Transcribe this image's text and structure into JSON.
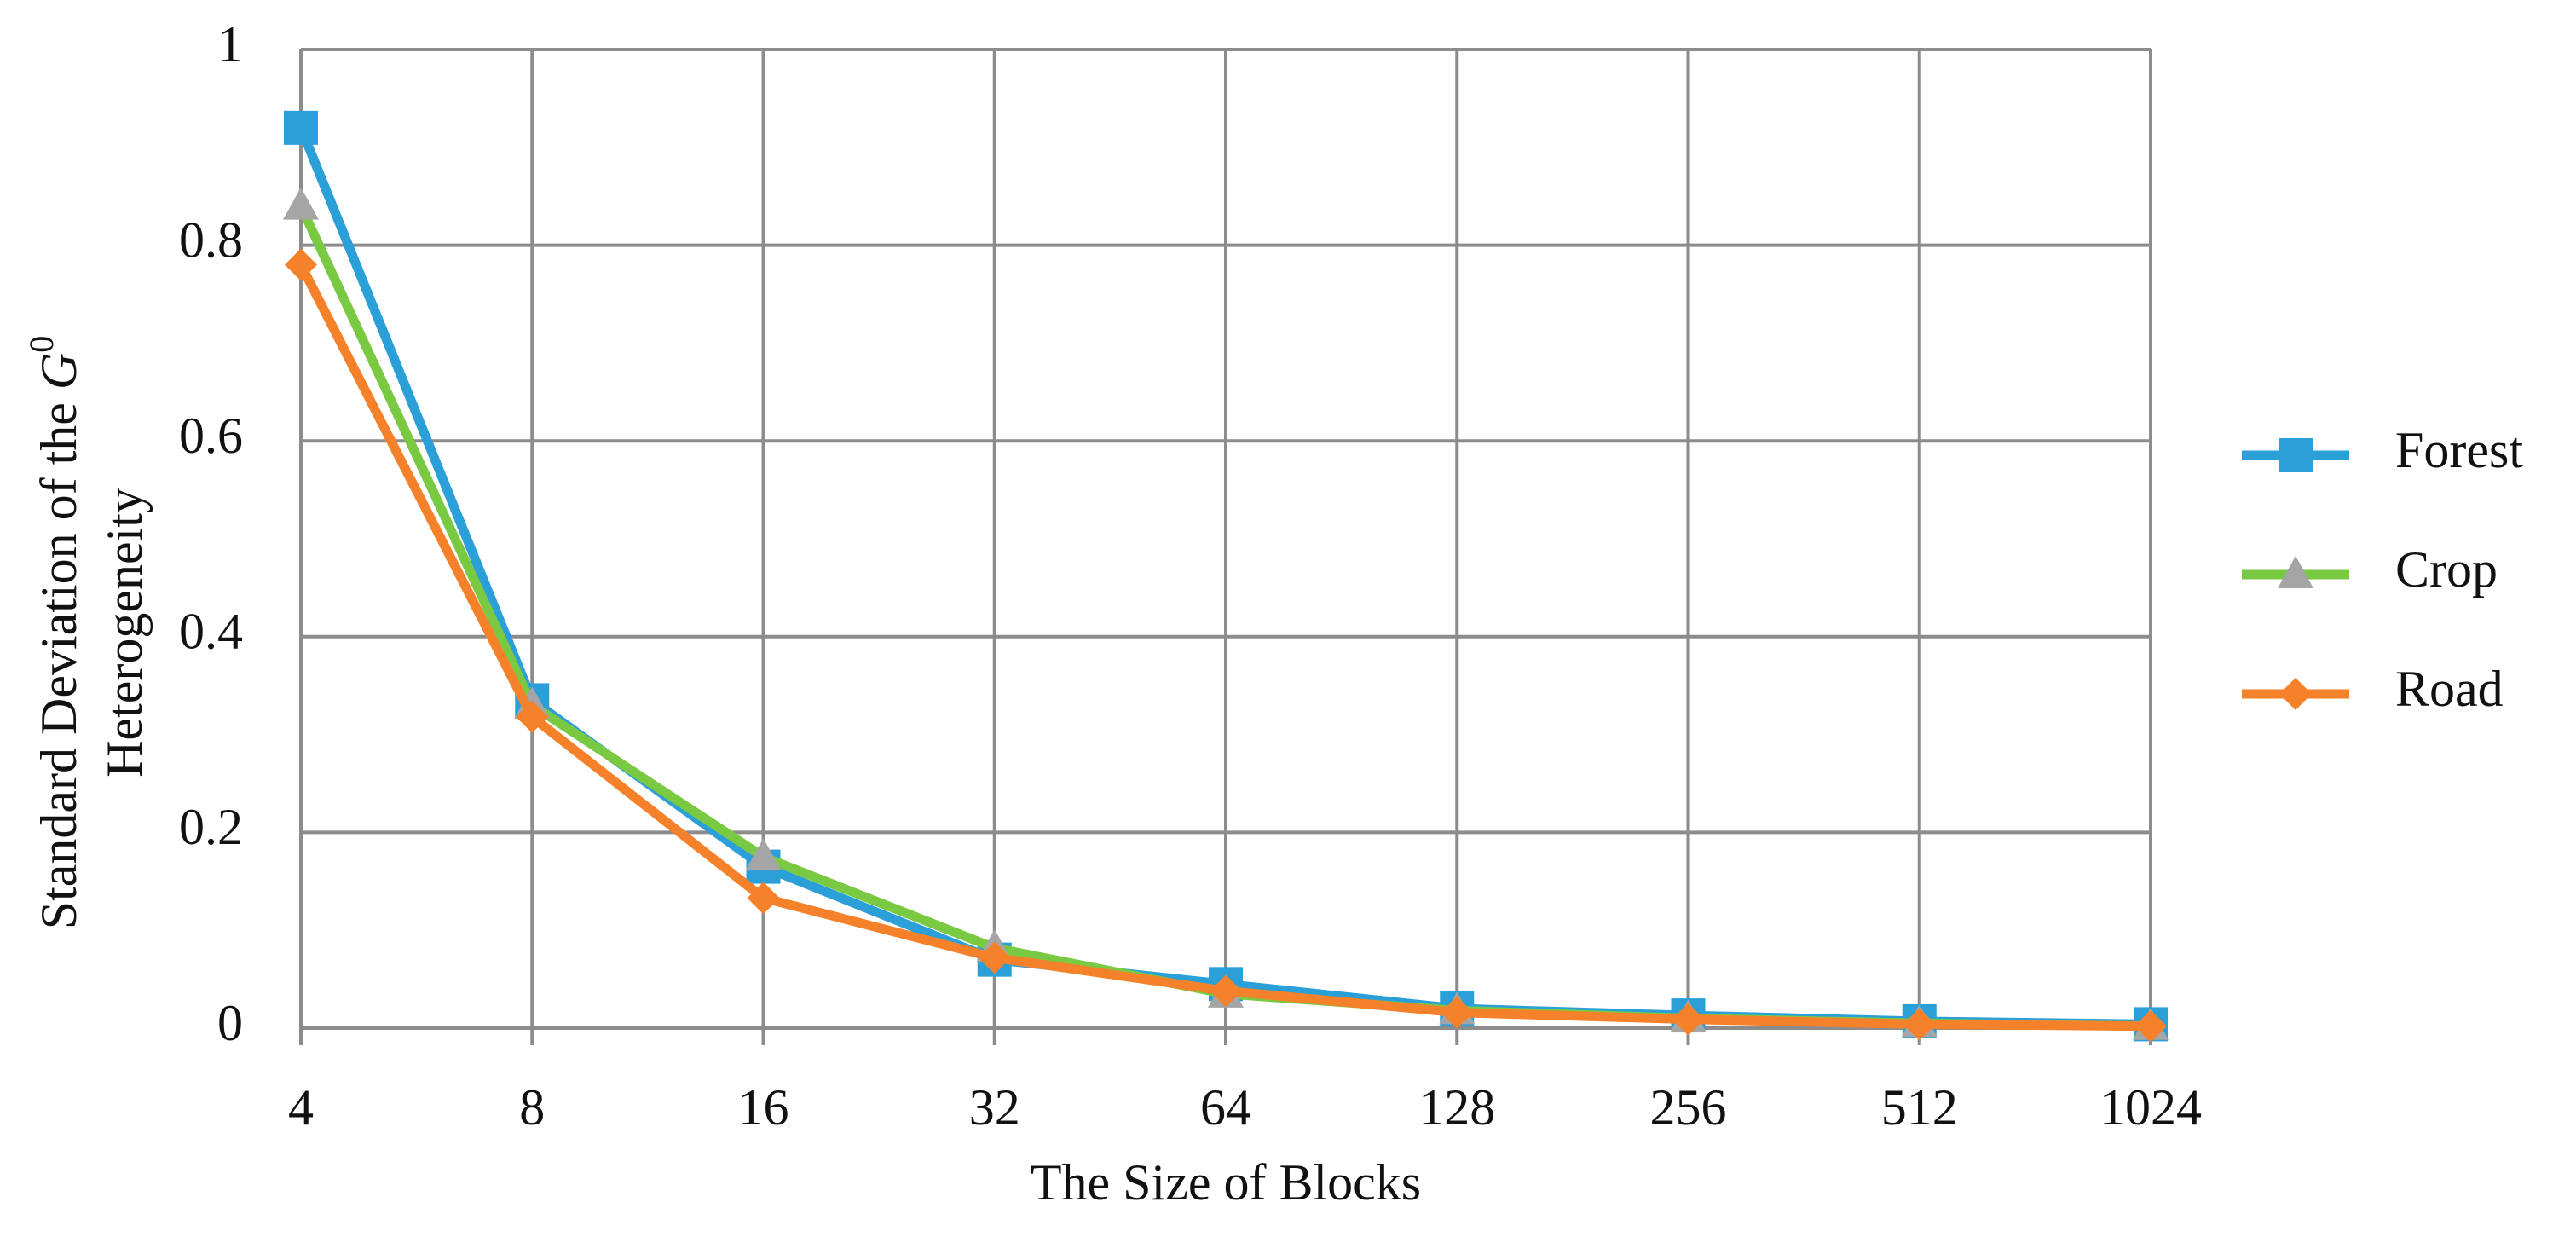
{
  "chart_data": {
    "type": "line",
    "ylabel": {
      "text": "Standard Deviation of the ",
      "symbol": "G",
      "superscript": "0",
      "line2": "Heterogeneity"
    },
    "xlabel": "The Size of Blocks",
    "categories": [
      "4",
      "8",
      "16",
      "32",
      "64",
      "128",
      "256",
      "512",
      "1024"
    ],
    "series": [
      {
        "name": "Forest",
        "color": "#2a9fd8",
        "marker": "square",
        "marker_color": "#2a9fd8",
        "values": [
          0.92,
          0.335,
          0.165,
          0.07,
          0.045,
          0.02,
          0.013,
          0.007,
          0.004
        ]
      },
      {
        "name": "Crop",
        "color": "#7ac943",
        "marker": "triangle",
        "marker_color": "#a5a5a5",
        "values": [
          0.84,
          0.33,
          0.175,
          0.082,
          0.035,
          0.018,
          0.01,
          0.005,
          0.002
        ]
      },
      {
        "name": "Road",
        "color": "#f5822a",
        "marker": "diamond",
        "marker_color": "#f5822a",
        "values": [
          0.78,
          0.318,
          0.133,
          0.072,
          0.038,
          0.016,
          0.009,
          0.004,
          0.002
        ]
      }
    ],
    "ylim": [
      0,
      1
    ],
    "yticks": [
      0,
      0.2,
      0.4,
      0.6,
      0.8,
      1
    ],
    "grid": true,
    "legend": "right"
  }
}
